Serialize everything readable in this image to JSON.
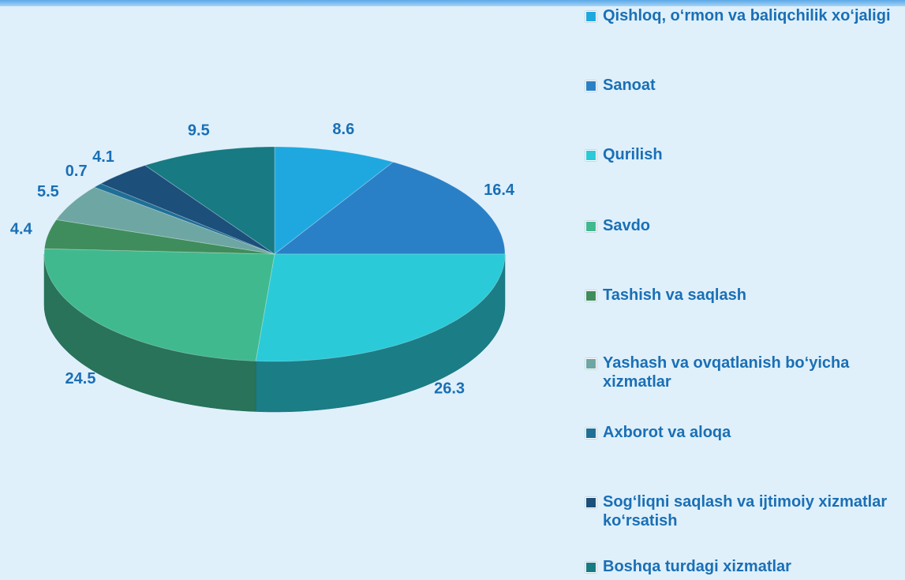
{
  "chart_data": {
    "type": "pie",
    "categories": [
      "Qishloq, o‘rmon va baliqchilik xo‘jaligi",
      "Sanoat",
      "Qurilish",
      "Savdo",
      "Tashish va saqlash",
      "Yashash va ovqatlanish bo‘yicha xizmatlar",
      "Axborot va aloqa",
      "Sog‘liqni saqlash va ijtimoiy xizmatlar ko‘rsatish",
      "Boshqa turdagi xizmatlar"
    ],
    "values": [
      8.6,
      16.4,
      26.3,
      24.5,
      4.4,
      5.5,
      0.7,
      4.1,
      9.5
    ],
    "colors": [
      "#1fa8e0",
      "#2a80c6",
      "#2bcad8",
      "#40b98f",
      "#3f8d5c",
      "#6ea6a3",
      "#1f6f96",
      "#1c4f7a",
      "#187a82"
    ],
    "legend": "right"
  }
}
